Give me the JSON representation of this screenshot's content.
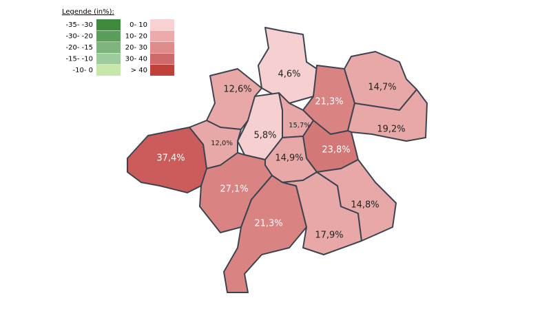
{
  "legend": {
    "title": "Legende (in%):",
    "negative": [
      {
        "label": "-35- -30",
        "color": "#3f8a3f"
      },
      {
        "label": "-30- -20",
        "color": "#5b9e5b"
      },
      {
        "label": "-20- -15",
        "color": "#7db57d"
      },
      {
        "label": "-15- -10",
        "color": "#9fcc9f"
      },
      {
        "label": "-10- 0",
        "color": "#c8e8ab"
      }
    ],
    "positive": [
      {
        "label": "0- 10",
        "color": "#f8d2d2"
      },
      {
        "label": "10- 20",
        "color": "#eeaaaa"
      },
      {
        "label": "20- 30",
        "color": "#e08c8c"
      },
      {
        "label": "30- 40",
        "color": "#d06a6a"
      },
      {
        "label": "> 40",
        "color": "#c0403a"
      }
    ]
  },
  "regions": [
    {
      "label": "4,6%",
      "color": "#f6d0d0"
    },
    {
      "label": "21,3%",
      "color": "#d98383"
    },
    {
      "label": "14,7%",
      "color": "#e8a8a8"
    },
    {
      "label": "19,2%",
      "color": "#e8a8a8"
    },
    {
      "label": "12,6%",
      "color": "#e8a8a8"
    },
    {
      "label": "5,8%",
      "color": "#f6d0d0"
    },
    {
      "label": "15,7%",
      "color": "#e8a8a8"
    },
    {
      "label": "12,0%",
      "color": "#e8a8a8"
    },
    {
      "label": "37,4%",
      "color": "#cc5c5c"
    },
    {
      "label": "23,8%",
      "color": "#d47777"
    },
    {
      "label": "14,9%",
      "color": "#e8a8a8"
    },
    {
      "label": "27,1%",
      "color": "#d98383"
    },
    {
      "label": "21,3%",
      "color": "#d98383"
    },
    {
      "label": "17,9%",
      "color": "#e8a8a8"
    },
    {
      "label": "14,8%",
      "color": "#e8a8a8"
    }
  ]
}
